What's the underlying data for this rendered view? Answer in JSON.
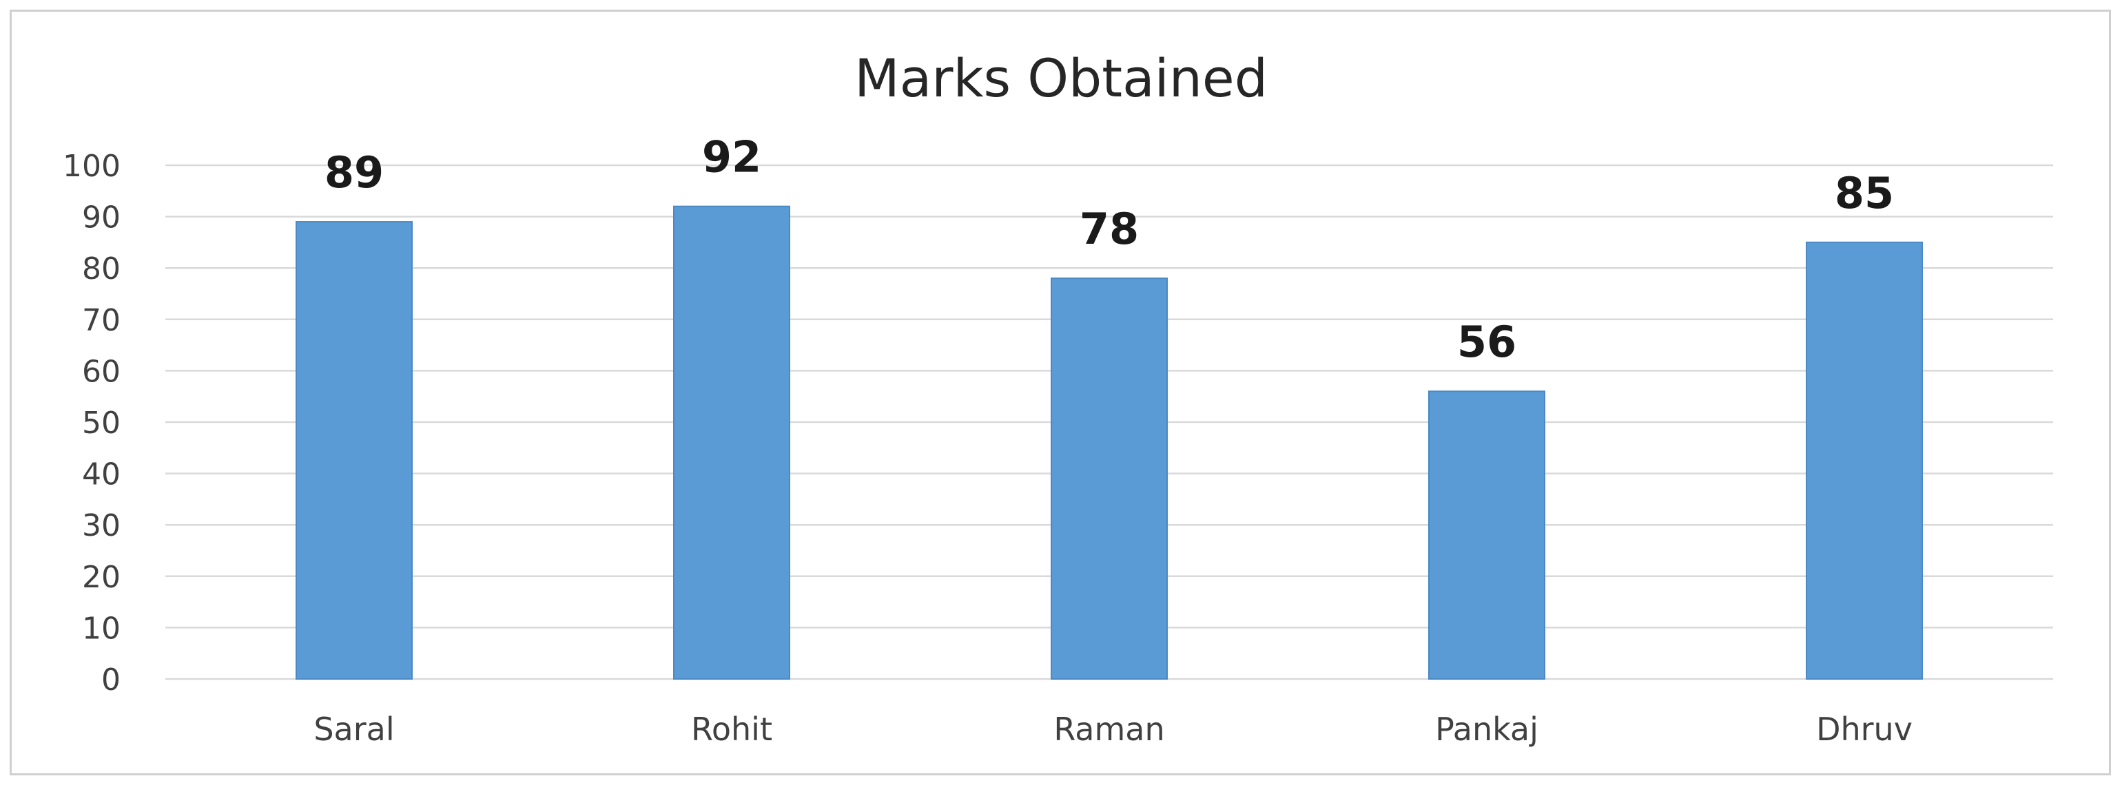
{
  "chart_data": {
    "type": "bar",
    "title": "Marks Obtained",
    "categories": [
      "Saral",
      "Rohit",
      "Raman",
      "Pankaj",
      "Dhruv"
    ],
    "values": [
      89,
      92,
      78,
      56,
      85
    ],
    "ylim": [
      0,
      100
    ],
    "yticks": [
      "0",
      "10",
      "20",
      "30",
      "40",
      "50",
      "60",
      "70",
      "80",
      "90",
      "100"
    ],
    "ytick_values": [
      0,
      10,
      20,
      30,
      40,
      50,
      60,
      70,
      80,
      90,
      100
    ],
    "grid": true,
    "legend": "none",
    "bar_color": "#5b9bd5",
    "data_labels": [
      "89",
      "92",
      "78",
      "56",
      "85"
    ]
  }
}
